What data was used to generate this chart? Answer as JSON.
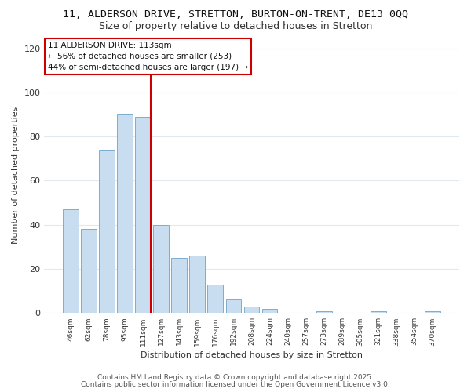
{
  "title": "11, ALDERSON DRIVE, STRETTON, BURTON-ON-TRENT, DE13 0QQ",
  "subtitle": "Size of property relative to detached houses in Stretton",
  "xlabel": "Distribution of detached houses by size in Stretton",
  "ylabel": "Number of detached properties",
  "bar_labels": [
    "46sqm",
    "62sqm",
    "78sqm",
    "95sqm",
    "111sqm",
    "127sqm",
    "143sqm",
    "159sqm",
    "176sqm",
    "192sqm",
    "208sqm",
    "224sqm",
    "240sqm",
    "257sqm",
    "273sqm",
    "289sqm",
    "305sqm",
    "321sqm",
    "338sqm",
    "354sqm",
    "370sqm"
  ],
  "bar_values": [
    47,
    38,
    74,
    90,
    89,
    40,
    25,
    26,
    13,
    6,
    3,
    2,
    0,
    0,
    1,
    0,
    0,
    1,
    0,
    0,
    1
  ],
  "bar_color": "#c8ddf0",
  "bar_edge_color": "#7aaed0",
  "highlight_index": 4,
  "highlight_line_color": "#cc0000",
  "annotation_line1": "11 ALDERSON DRIVE: 113sqm",
  "annotation_line2": "← 56% of detached houses are smaller (253)",
  "annotation_line3": "44% of semi-detached houses are larger (197) →",
  "annotation_box_color": "#ffffff",
  "annotation_box_edge": "#cc0000",
  "ylim": [
    0,
    125
  ],
  "yticks": [
    0,
    20,
    40,
    60,
    80,
    100,
    120
  ],
  "footnote1": "Contains HM Land Registry data © Crown copyright and database right 2025.",
  "footnote2": "Contains public sector information licensed under the Open Government Licence v3.0.",
  "bg_color": "#ffffff",
  "grid_color": "#e0e8f0",
  "title_fontsize": 9.5,
  "subtitle_fontsize": 9,
  "label_fontsize": 8,
  "annotation_fontsize": 7.5,
  "footnote_fontsize": 6.5
}
